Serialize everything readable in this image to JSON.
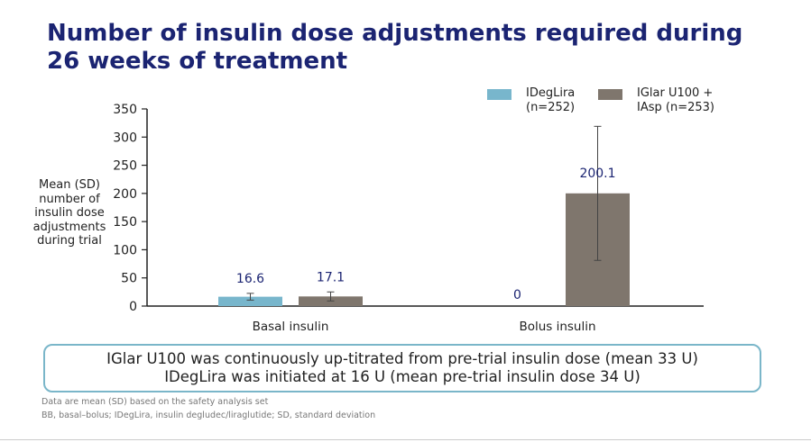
{
  "slide": {
    "title": "Number of insulin dose adjustments required during 26 weeks of treatment",
    "callout_line1": "IGlar U100 was continuously up-titrated from pre-trial insulin dose (mean 33 U)",
    "callout_line2": "IDegLira was initiated at 16 U (mean pre-trial insulin dose 34 U)",
    "footnote1": "Data are mean (SD) based on the safety analysis set",
    "footnote2": "BB, basal–bolus; IDegLira, insulin degludec/liraglutide; SD, standard deviation"
  },
  "chart_data": {
    "type": "bar",
    "title": "Number of insulin dose adjustments required during 26 weeks of treatment",
    "ylabel": "Mean (SD)\nnumber of\ninsulin dose\nadjustments\nduring trial",
    "xlabel": "",
    "categories": [
      "Basal insulin",
      "Bolus insulin"
    ],
    "ylim": [
      0,
      350
    ],
    "yticks": [
      0,
      50,
      100,
      150,
      200,
      250,
      300,
      350
    ],
    "grid": false,
    "legend_position": "top-right",
    "series": [
      {
        "name": "IDegLira\n(n=252)",
        "color": "#78b6cc",
        "values": [
          16.6,
          0
        ],
        "labels": [
          "16.6",
          "0"
        ],
        "sd": [
          6,
          null
        ]
      },
      {
        "name": "IGlar U100 +\nIAsp (n=253)",
        "color": "#7f766d",
        "values": [
          17.1,
          200.1
        ],
        "labels": [
          "17.1",
          "200.1"
        ],
        "sd": [
          8,
          119
        ]
      }
    ]
  }
}
